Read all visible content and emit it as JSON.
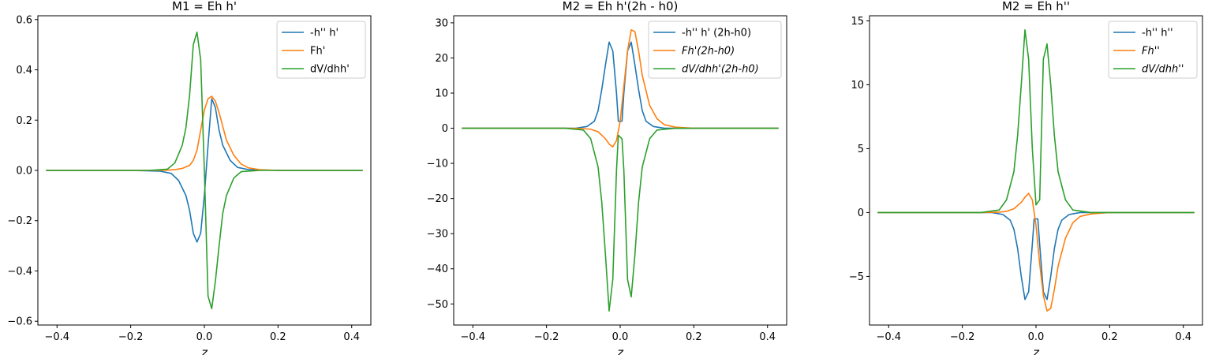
{
  "chart_data": [
    {
      "type": "line",
      "title": "M1 = Eh h'",
      "xlabel": "z",
      "ylabel": "",
      "xlim": [
        -0.452,
        0.452
      ],
      "ylim": [
        -0.615,
        0.615
      ],
      "xticks": [
        -0.4,
        -0.2,
        0.0,
        0.2,
        0.4
      ],
      "xtick_labels": [
        "−0.4",
        "−0.2",
        "0.0",
        "0.2",
        "0.4"
      ],
      "yticks": [
        -0.6,
        -0.4,
        -0.2,
        0.0,
        0.2,
        0.4,
        0.6
      ],
      "ytick_labels": [
        "−0.6",
        "−0.4",
        "−0.2",
        "0.0",
        "0.2",
        "0.4",
        "0.6"
      ],
      "legend_position": "top-right",
      "series": [
        {
          "name": "-h'' h'",
          "color": "#1f77b4",
          "x": [
            -0.43,
            -0.2,
            -0.12,
            -0.09,
            -0.07,
            -0.05,
            -0.04,
            -0.03,
            -0.02,
            -0.01,
            0.0,
            0.01,
            0.02,
            0.03,
            0.04,
            0.05,
            0.07,
            0.09,
            0.12,
            0.2,
            0.43
          ],
          "y": [
            0,
            0,
            -0.003,
            -0.012,
            -0.04,
            -0.1,
            -0.16,
            -0.25,
            -0.285,
            -0.25,
            -0.1,
            0.1,
            0.285,
            0.25,
            0.16,
            0.1,
            0.04,
            0.012,
            0.003,
            0,
            0
          ]
        },
        {
          "name": "Fh'",
          "color": "#ff7f0e",
          "x": [
            -0.43,
            -0.15,
            -0.1,
            -0.08,
            -0.06,
            -0.04,
            -0.03,
            -0.02,
            -0.01,
            0.0,
            0.01,
            0.02,
            0.03,
            0.04,
            0.05,
            0.06,
            0.08,
            0.1,
            0.12,
            0.15,
            0.2,
            0.43
          ],
          "y": [
            0,
            0,
            0.001,
            0.003,
            0.008,
            0.02,
            0.04,
            0.08,
            0.16,
            0.24,
            0.285,
            0.295,
            0.275,
            0.23,
            0.175,
            0.12,
            0.06,
            0.025,
            0.01,
            0.003,
            0,
            0
          ]
        },
        {
          "name": "dV/dhh'",
          "color": "#2ca02c",
          "x": [
            -0.43,
            -0.15,
            -0.1,
            -0.08,
            -0.06,
            -0.05,
            -0.04,
            -0.03,
            -0.02,
            -0.01,
            0.0,
            0.01,
            0.02,
            0.03,
            0.04,
            0.05,
            0.06,
            0.08,
            0.1,
            0.15,
            0.43
          ],
          "y": [
            0,
            0,
            0.005,
            0.03,
            0.1,
            0.17,
            0.3,
            0.5,
            0.55,
            0.44,
            0.0,
            -0.5,
            -0.55,
            -0.44,
            -0.3,
            -0.17,
            -0.1,
            -0.03,
            -0.005,
            0,
            0
          ]
        }
      ]
    },
    {
      "type": "line",
      "title": "M2 = Eh h'(2h - h0)",
      "xlabel": "z",
      "ylabel": "",
      "xlim": [
        -0.452,
        0.452
      ],
      "ylim": [
        -56,
        32
      ],
      "xticks": [
        -0.4,
        -0.2,
        0.0,
        0.2,
        0.4
      ],
      "xtick_labels": [
        "−0.4",
        "−0.2",
        "0.0",
        "0.2",
        "0.4"
      ],
      "yticks": [
        -50,
        -40,
        -30,
        -20,
        -10,
        0,
        10,
        20,
        30
      ],
      "ytick_labels": [
        "−50",
        "−40",
        "−30",
        "−20",
        "−10",
        "0",
        "10",
        "20",
        "30"
      ],
      "legend_position": "top-right",
      "series": [
        {
          "name": "-h'' h' (2h-h0)",
          "color": "#1f77b4",
          "x": [
            -0.43,
            -0.12,
            -0.09,
            -0.07,
            -0.06,
            -0.05,
            -0.04,
            -0.03,
            -0.02,
            -0.01,
            -0.005,
            0.005,
            0.01,
            0.02,
            0.03,
            0.04,
            0.05,
            0.06,
            0.07,
            0.09,
            0.12,
            0.43
          ],
          "y": [
            0,
            0,
            0.5,
            2,
            5,
            11,
            18,
            24.5,
            22,
            10,
            2,
            2,
            10,
            22,
            24.5,
            18,
            11,
            5,
            2,
            0.5,
            0,
            0
          ]
        },
        {
          "name": "$Fh'(2h-h0)$",
          "color": "#ff7f0e",
          "x": [
            -0.43,
            -0.15,
            -0.1,
            -0.08,
            -0.06,
            -0.04,
            -0.03,
            -0.02,
            -0.01,
            0.0,
            0.01,
            0.02,
            0.03,
            0.04,
            0.05,
            0.06,
            0.08,
            0.1,
            0.12,
            0.15,
            0.2,
            0.43
          ],
          "y": [
            0,
            0,
            -0.1,
            -0.3,
            -1.0,
            -3.0,
            -4.5,
            -5.3,
            -3.5,
            2,
            12,
            22,
            28,
            27.5,
            22,
            15,
            6.5,
            2.7,
            1,
            0.3,
            0,
            0
          ]
        },
        {
          "name": "$dV/dhh'(2h-h0)$",
          "color": "#2ca02c",
          "x": [
            -0.43,
            -0.15,
            -0.1,
            -0.08,
            -0.06,
            -0.05,
            -0.04,
            -0.03,
            -0.02,
            -0.01,
            -0.005,
            0.005,
            0.01,
            0.02,
            0.03,
            0.04,
            0.05,
            0.06,
            0.08,
            0.1,
            0.15,
            0.43
          ],
          "y": [
            0,
            0,
            -0.5,
            -3,
            -11,
            -21,
            -36,
            -52,
            -43,
            -12,
            -2,
            -3,
            -12,
            -43,
            -48,
            -36,
            -21,
            -11,
            -3,
            -0.5,
            0,
            0
          ]
        }
      ]
    },
    {
      "type": "line",
      "title": "M2 = Eh h''",
      "xlabel": "z",
      "ylabel": "",
      "xlim": [
        -0.452,
        0.452
      ],
      "ylim": [
        -8.8,
        15.4
      ],
      "xticks": [
        -0.4,
        -0.2,
        0.0,
        0.2,
        0.4
      ],
      "xtick_labels": [
        "−0.4",
        "−0.2",
        "0.0",
        "0.2",
        "0.4"
      ],
      "yticks": [
        -5,
        0,
        5,
        10,
        15
      ],
      "ytick_labels": [
        "−5",
        "0",
        "5",
        "10",
        "15"
      ],
      "legend_position": "top-right",
      "series": [
        {
          "name": "-h'' h''",
          "color": "#1f77b4",
          "x": [
            -0.43,
            -0.12,
            -0.09,
            -0.07,
            -0.06,
            -0.05,
            -0.04,
            -0.03,
            -0.02,
            -0.01,
            -0.005,
            0.005,
            0.01,
            0.02,
            0.03,
            0.04,
            0.05,
            0.06,
            0.07,
            0.09,
            0.12,
            0.43
          ],
          "y": [
            0,
            0,
            -0.15,
            -0.6,
            -1.3,
            -2.8,
            -5.0,
            -6.8,
            -6.2,
            -2.5,
            -0.5,
            -0.5,
            -2.5,
            -6.2,
            -6.8,
            -5.0,
            -2.8,
            -1.3,
            -0.6,
            -0.15,
            0,
            0
          ]
        },
        {
          "name": "$Fh''$",
          "color": "#ff7f0e",
          "x": [
            -0.43,
            -0.15,
            -0.1,
            -0.08,
            -0.06,
            -0.04,
            -0.03,
            -0.02,
            -0.01,
            0.0,
            0.01,
            0.02,
            0.03,
            0.04,
            0.05,
            0.06,
            0.08,
            0.1,
            0.12,
            0.15,
            0.2,
            0.43
          ],
          "y": [
            0,
            0,
            0.03,
            0.1,
            0.3,
            0.8,
            1.2,
            1.5,
            1.0,
            -1.0,
            -4.0,
            -6.5,
            -7.7,
            -7.5,
            -6.0,
            -4.2,
            -2.0,
            -0.8,
            -0.3,
            -0.1,
            0,
            0
          ]
        },
        {
          "name": "$dV/dhh''$",
          "color": "#2ca02c",
          "x": [
            -0.43,
            -0.15,
            -0.1,
            -0.08,
            -0.06,
            -0.05,
            -0.04,
            -0.03,
            -0.02,
            -0.01,
            0.0,
            0.01,
            0.02,
            0.03,
            0.04,
            0.05,
            0.06,
            0.08,
            0.1,
            0.15,
            0.43
          ],
          "y": [
            0,
            0,
            0.2,
            1.0,
            3.2,
            6.0,
            10.0,
            14.3,
            12.0,
            5.0,
            0.6,
            1.0,
            12.0,
            13.2,
            10.0,
            6.0,
            3.2,
            1.0,
            0.2,
            0,
            0
          ]
        }
      ]
    }
  ]
}
